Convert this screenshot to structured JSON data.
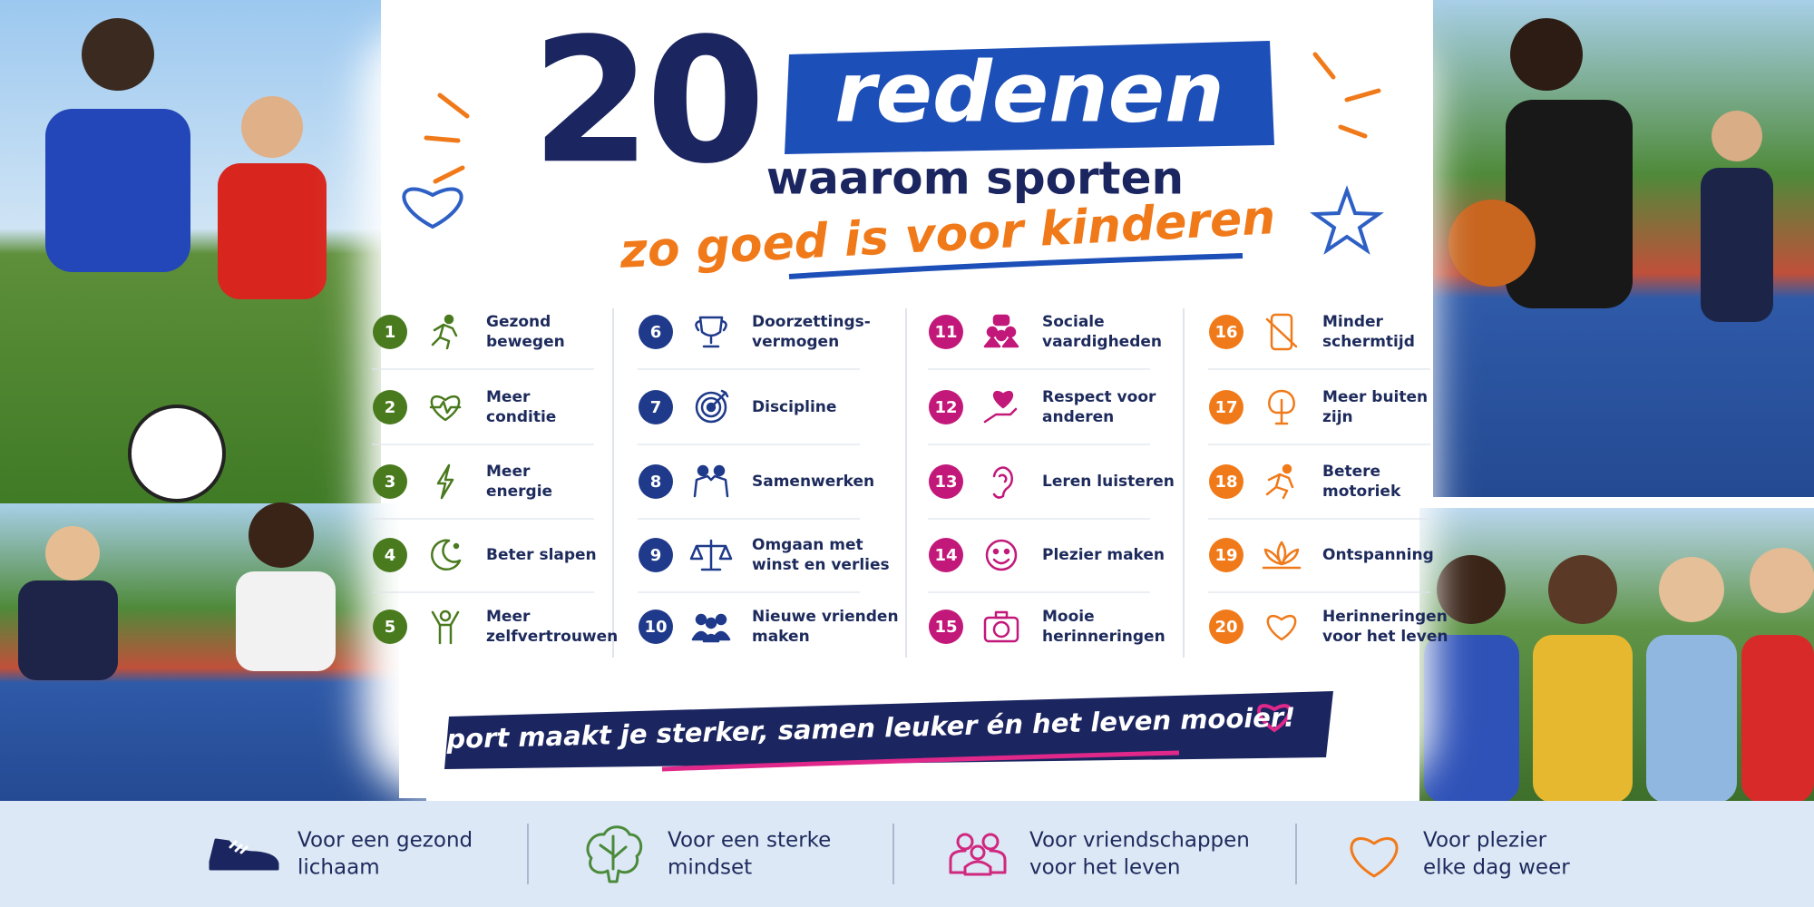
{
  "header": {
    "number": 20,
    "title": "redenen",
    "subtitle_1": "waarom sporten",
    "subtitle_2": "zo goed is voor kinderen"
  },
  "reasons": [
    {
      "number": 1,
      "lines": [
        "Gezond",
        "bewegen"
      ]
    },
    {
      "number": 2,
      "lines": [
        "Meer",
        "conditie"
      ]
    },
    {
      "number": 3,
      "lines": [
        "Meer",
        "energie"
      ]
    },
    {
      "number": 4,
      "lines": [
        "Beter slapen"
      ]
    },
    {
      "number": 5,
      "lines": [
        "Meer",
        "zelfvertrouwen"
      ]
    },
    {
      "number": 6,
      "lines": [
        "Doorzettings-",
        "vermogen"
      ]
    },
    {
      "number": 7,
      "lines": [
        "Discipline"
      ]
    },
    {
      "number": 8,
      "lines": [
        "Samenwerken"
      ]
    },
    {
      "number": 9,
      "lines": [
        "Omgaan met",
        "winst en verlies"
      ]
    },
    {
      "number": 10,
      "lines": [
        "Nieuwe vrienden",
        "maken"
      ]
    },
    {
      "number": 11,
      "lines": [
        "Sociale",
        "vaardigheden"
      ]
    },
    {
      "number": 12,
      "lines": [
        "Respect voor",
        "anderen"
      ]
    },
    {
      "number": 13,
      "lines": [
        "Leren luisteren"
      ]
    },
    {
      "number": 14,
      "lines": [
        "Plezier maken"
      ]
    },
    {
      "number": 15,
      "lines": [
        "Mooie",
        "herinneringen"
      ]
    },
    {
      "number": 16,
      "lines": [
        "Minder",
        "schermtijd"
      ]
    },
    {
      "number": 17,
      "lines": [
        "Meer buiten",
        "zijn"
      ]
    },
    {
      "number": 18,
      "lines": [
        "Betere",
        "motoriek"
      ]
    },
    {
      "number": 19,
      "lines": [
        "Ontspanning"
      ]
    },
    {
      "number": 20,
      "lines": [
        "Herinneringen",
        "voor het leven"
      ]
    }
  ],
  "slogan": "Sport maakt je sterker, samen leuker én het leven mooier!",
  "benefits": [
    {
      "lines": [
        "Voor een gezond",
        "lichaam"
      ]
    },
    {
      "lines": [
        "Voor een sterke",
        "mindset"
      ]
    },
    {
      "lines": [
        "Voor vriendschappen",
        "voor het leven"
      ]
    },
    {
      "lines": [
        "Voor plezier",
        "elke dag weer"
      ]
    }
  ]
}
